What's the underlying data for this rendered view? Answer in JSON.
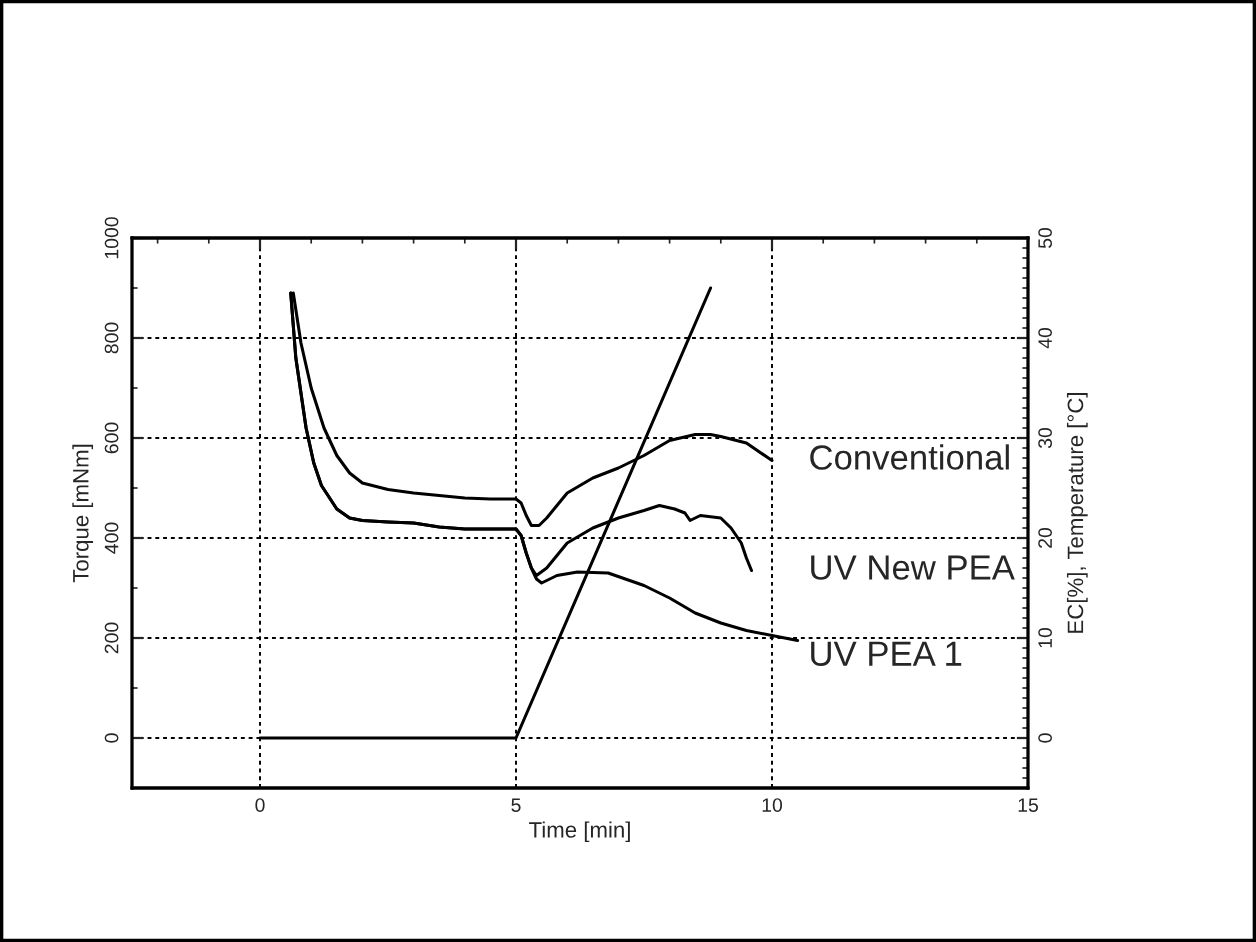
{
  "chart_data": {
    "type": "line",
    "xlabel": "Time [min]",
    "ylabel": "Torque [mNm]",
    "y2label": "EC[%], Temperature [°C]",
    "xlim": [
      -2.5,
      15
    ],
    "xticks": [
      0,
      5,
      10,
      15
    ],
    "ylim": [
      -100,
      1000
    ],
    "yticks": [
      0,
      200,
      400,
      600,
      800,
      1000
    ],
    "y2lim": [
      -5,
      50
    ],
    "y2ticks": [
      0,
      10,
      20,
      30,
      40,
      50
    ],
    "grid": true,
    "line_style": "solid",
    "marker": "none",
    "legend": false,
    "series": [
      {
        "name": "Conventional",
        "color": "#000000",
        "x": [
          0.65,
          0.8,
          1,
          1.25,
          1.5,
          1.75,
          2,
          2.5,
          3,
          3.5,
          4,
          4.5,
          5,
          5.1,
          5.2,
          5.3,
          5.45,
          5.6,
          5.8,
          6,
          6.5,
          7,
          7.5,
          8,
          8.5,
          8.8,
          9,
          9.5,
          10
        ],
        "values": [
          890,
          790,
          700,
          620,
          565,
          530,
          510,
          497,
          490,
          485,
          480,
          478,
          478,
          470,
          445,
          425,
          425,
          440,
          465,
          490,
          520,
          540,
          565,
          595,
          607,
          607,
          603,
          590,
          555
        ]
      },
      {
        "name": "UV New PEA",
        "color": "#000000",
        "x": [
          0.6,
          0.7,
          0.9,
          1.05,
          1.2,
          1.5,
          1.75,
          2,
          2.5,
          3,
          3.5,
          4,
          4.5,
          5,
          5.1,
          5.2,
          5.3,
          5.4,
          5.6,
          5.8,
          6,
          6.5,
          7,
          7.5,
          7.8,
          8.1,
          8.3,
          8.4,
          8.6,
          9,
          9.2,
          9.4,
          9.5,
          9.6
        ],
        "values": [
          890,
          760,
          620,
          550,
          505,
          458,
          440,
          435,
          432,
          430,
          422,
          418,
          418,
          418,
          405,
          370,
          340,
          325,
          340,
          365,
          390,
          420,
          440,
          455,
          465,
          458,
          450,
          435,
          445,
          440,
          420,
          390,
          360,
          335
        ]
      },
      {
        "name": "UV PEA 1",
        "color": "#000000",
        "x": [
          0.6,
          0.7,
          0.9,
          1.05,
          1.2,
          1.5,
          1.75,
          2,
          2.5,
          3,
          3.5,
          4,
          4.5,
          5,
          5.1,
          5.2,
          5.3,
          5.4,
          5.5,
          5.8,
          6.2,
          6.8,
          7.5,
          8,
          8.5,
          9,
          9.5,
          10,
          10.5
        ],
        "values": [
          890,
          760,
          620,
          550,
          505,
          458,
          440,
          435,
          432,
          430,
          422,
          418,
          418,
          418,
          405,
          370,
          340,
          318,
          310,
          325,
          332,
          330,
          305,
          280,
          250,
          230,
          215,
          205,
          195
        ]
      },
      {
        "axis": "y2",
        "color": "#000000",
        "x": [
          0,
          5,
          8.8
        ],
        "values": [
          0,
          0,
          45
        ]
      }
    ]
  }
}
